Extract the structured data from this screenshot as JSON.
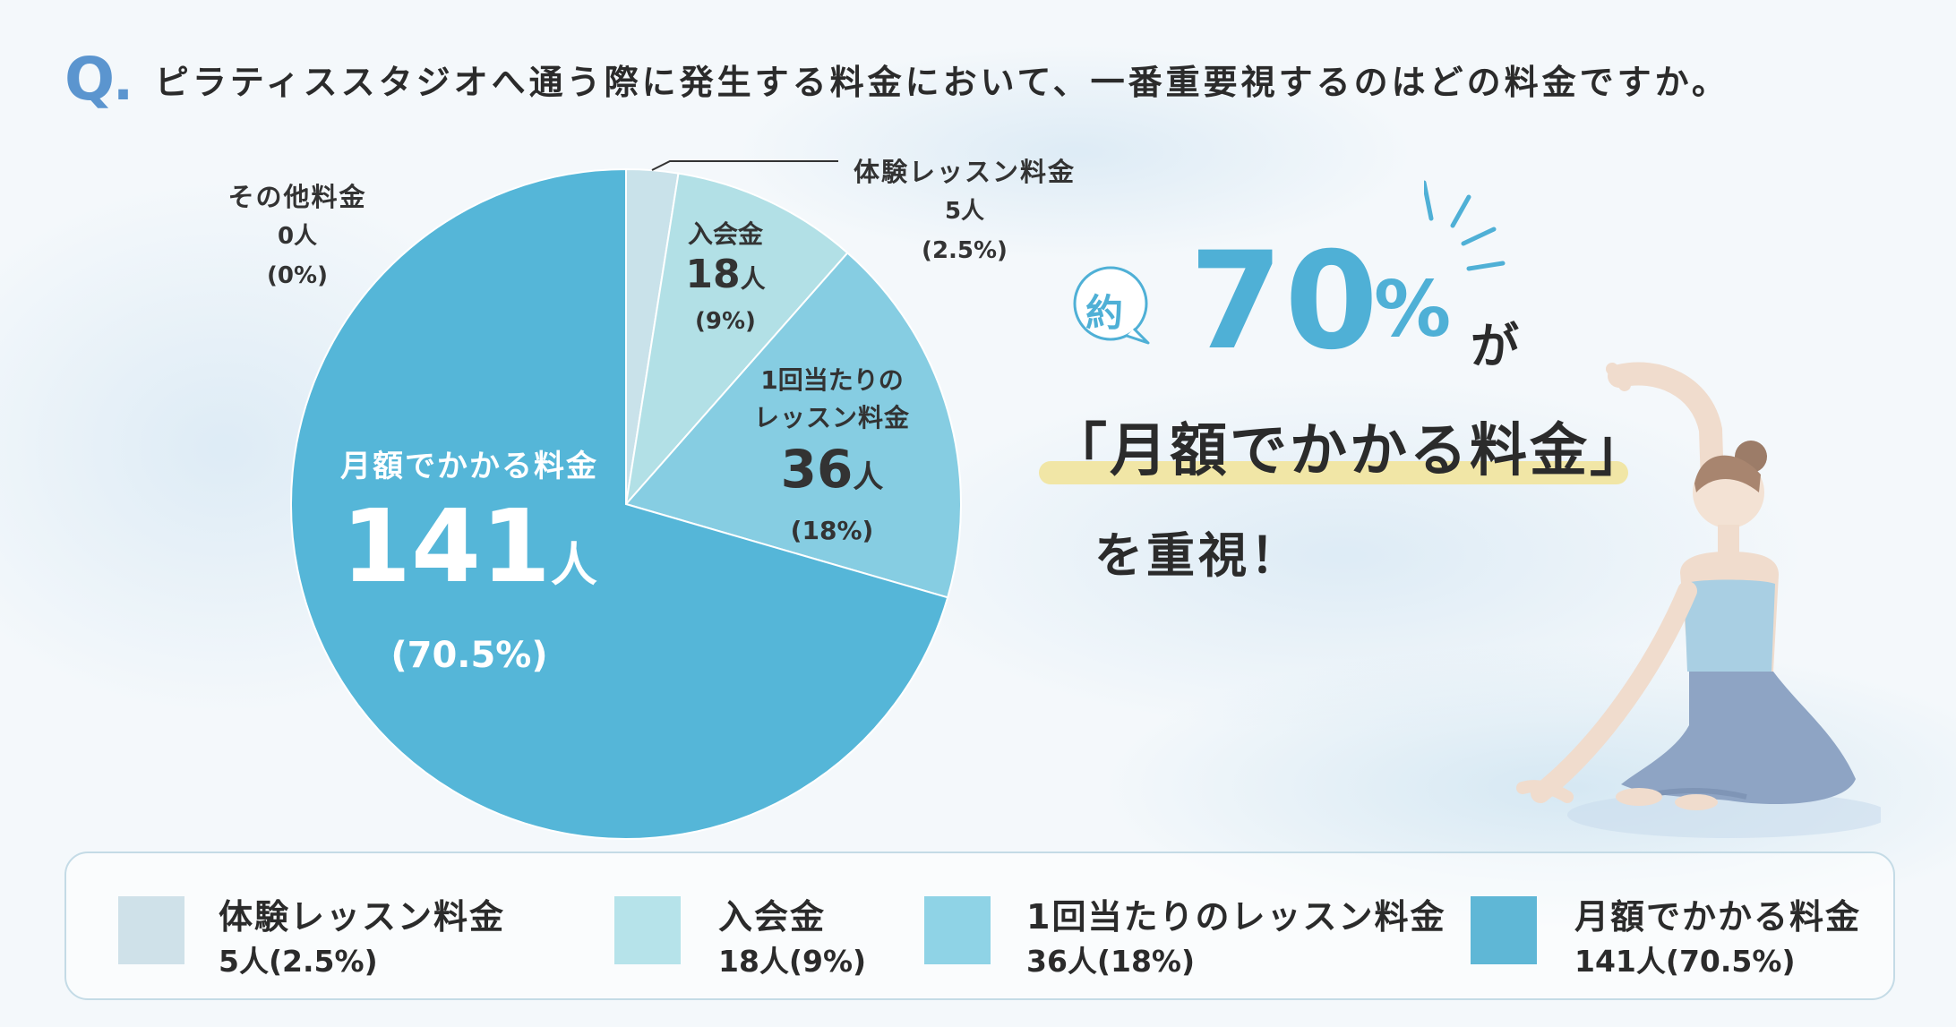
{
  "question": {
    "mark": "Q",
    "dot": ".",
    "text": "ピラティススタジオへ通う際に発生する料金において、一番重要視するのはどの料金ですか。"
  },
  "chart_data": {
    "type": "pie",
    "start_angle_deg": 0,
    "direction": "clockwise",
    "slices": [
      {
        "label": "体験レッスン料金",
        "count": "5人",
        "percent": "(2.5%)",
        "value": 5,
        "share": 2.5,
        "color": "#c9e2ea"
      },
      {
        "label": "入会金",
        "count": "18人",
        "percent": "(9%)",
        "value": 18,
        "share": 9,
        "color": "#b2e0e6"
      },
      {
        "label": "1回当たりのレッスン料金",
        "count": "36人",
        "percent": "(18%)",
        "value": 36,
        "share": 18,
        "color": "#86cde2"
      },
      {
        "label": "月額でかかる料金",
        "count": "141人",
        "percent": "(70.5%)",
        "value": 141,
        "share": 70.5,
        "color": "#55b6d8"
      },
      {
        "label": "その他料金",
        "count": "0人",
        "percent": "(0%)",
        "value": 0,
        "share": 0,
        "color": "#e0eef3"
      }
    ]
  },
  "pie_labels": {
    "trial": {
      "line1": "体験レッスン料金",
      "line2": "5人",
      "line3": "(2.5%)"
    },
    "entry": {
      "line1": "入会金",
      "num": "18",
      "unit": "人",
      "pct": "(9%)"
    },
    "per_lesson": {
      "line1": "1回当たりの",
      "line2": "レッスン料金",
      "num": "36",
      "unit": "人",
      "pct": "(18%)"
    },
    "monthly": {
      "line1": "月額でかかる料金",
      "num": "141",
      "unit": "人",
      "pct": "(70.5%)"
    },
    "other": {
      "line1": "その他料金",
      "line2": "0人",
      "line3": "(0%)"
    }
  },
  "headline": {
    "approx": "約",
    "number": "70",
    "percent_sign": "%",
    "particle": "が",
    "quote": "「月額でかかる料金」",
    "emphasis": "を重視！"
  },
  "legend": [
    {
      "name": "体験レッスン料金",
      "value": "5人(2.5%)",
      "color": "#cfe1e9"
    },
    {
      "name": "入会金",
      "value": "18人(9%)",
      "color": "#b6e3ea"
    },
    {
      "name": "1回当たりのレッスン料金",
      "value": "36人(18%)",
      "color": "#8fd3e6"
    },
    {
      "name": "月額でかかる料金",
      "value": "141人(70.5%)",
      "color": "#5fb7d6"
    }
  ],
  "colors": {
    "accent": "#4fb0d6",
    "q_mark": "#5b95cf",
    "marker": "#f1e6a6"
  }
}
